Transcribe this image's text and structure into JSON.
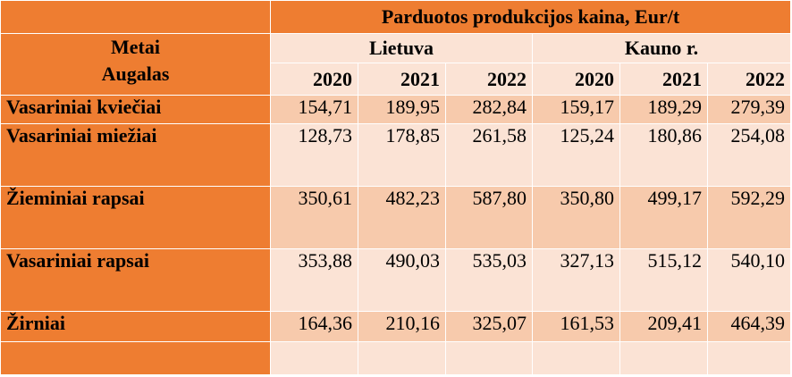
{
  "table": {
    "title": "Parduotos produkcijos kaina, Eur/t",
    "stub_header": {
      "line1": "Metai",
      "line2": "Augalas"
    },
    "regions": [
      {
        "name": "Lietuva",
        "years": [
          "2020",
          "2021",
          "2022"
        ]
      },
      {
        "name": "Kauno r.",
        "years": [
          "2020",
          "2021",
          "2022"
        ]
      }
    ],
    "rows": [
      {
        "crop": "Vasariniai kviečiai",
        "values": [
          "154,71",
          "189,95",
          "282,84",
          "159,17",
          "189,29",
          "279,39"
        ]
      },
      {
        "crop": "Vasariniai miežiai",
        "values": [
          "128,73",
          "178,85",
          "261,58",
          "125,24",
          "180,86",
          "254,08"
        ]
      },
      {
        "crop": "Žieminiai rapsai",
        "values": [
          "350,61",
          "482,23",
          "587,80",
          "350,80",
          "499,17",
          "592,29"
        ]
      },
      {
        "crop": "Vasariniai rapsai",
        "values": [
          "353,88",
          "490,03",
          "535,03",
          "327,13",
          "515,12",
          "540,10"
        ]
      },
      {
        "crop": "Žirniai",
        "values": [
          "164,36",
          "210,16",
          "325,07",
          "161,53",
          "209,41",
          "464,39"
        ]
      }
    ],
    "colors": {
      "header_orange": "#ee7d31",
      "light_peach": "#fbe3d5",
      "mid_peach": "#f7caac"
    }
  }
}
